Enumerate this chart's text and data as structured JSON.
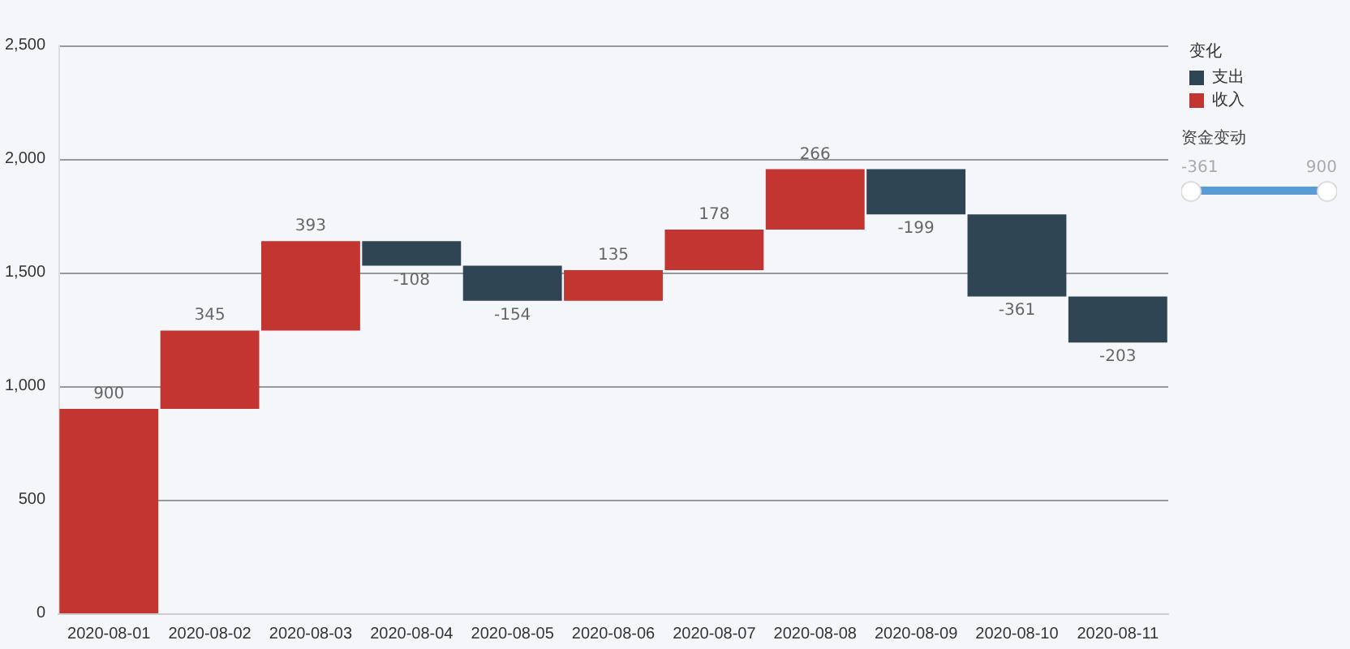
{
  "chart_data": {
    "type": "bar",
    "legend_title": "变化",
    "legend": "top right",
    "grid": true,
    "data_labels": true,
    "categories": [
      "2020-08-01",
      "2020-08-02",
      "2020-08-03",
      "2020-08-04",
      "2020-08-05",
      "2020-08-06",
      "2020-08-07",
      "2020-08-08",
      "2020-08-09",
      "2020-08-10",
      "2020-08-11"
    ],
    "series": [
      {
        "name": "支出",
        "color": "#2f4554",
        "values": [
          null,
          null,
          null,
          -108,
          -154,
          null,
          null,
          null,
          -199,
          -361,
          -203
        ],
        "base": [
          null,
          null,
          null,
          1638,
          1530,
          null,
          null,
          null,
          1955,
          1756,
          1395
        ]
      },
      {
        "name": "收入",
        "color": "#c23531",
        "values": [
          900,
          345,
          393,
          null,
          null,
          135,
          178,
          266,
          null,
          null,
          null
        ],
        "base": [
          0,
          900,
          1245,
          null,
          null,
          1376,
          1511,
          1689,
          null,
          null,
          null
        ]
      }
    ],
    "ylim": [
      0,
      2500
    ],
    "yticks": [
      0,
      500,
      {
        "value": 1000,
        "label": "1,000"
      },
      {
        "value": 1500,
        "label": "1,500"
      },
      {
        "value": 2000,
        "label": "2,000"
      },
      {
        "value": 2500,
        "label": "2,500"
      }
    ],
    "annotations": [
      "资金变动",
      "-361",
      "900"
    ]
  }
}
